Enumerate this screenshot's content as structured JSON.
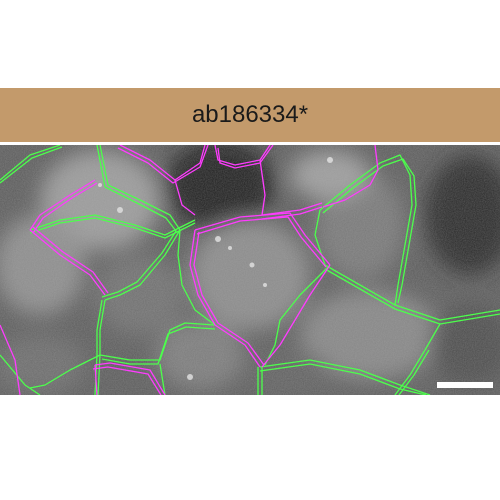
{
  "panel": {
    "label": "ab186334*",
    "label_bg": "#c39a6b",
    "image_bg": "#5a5a5a",
    "outline_colors": {
      "green": "#4cff4c",
      "magenta": "#ff3cff"
    },
    "scale_bar_color": "#ffffff"
  }
}
